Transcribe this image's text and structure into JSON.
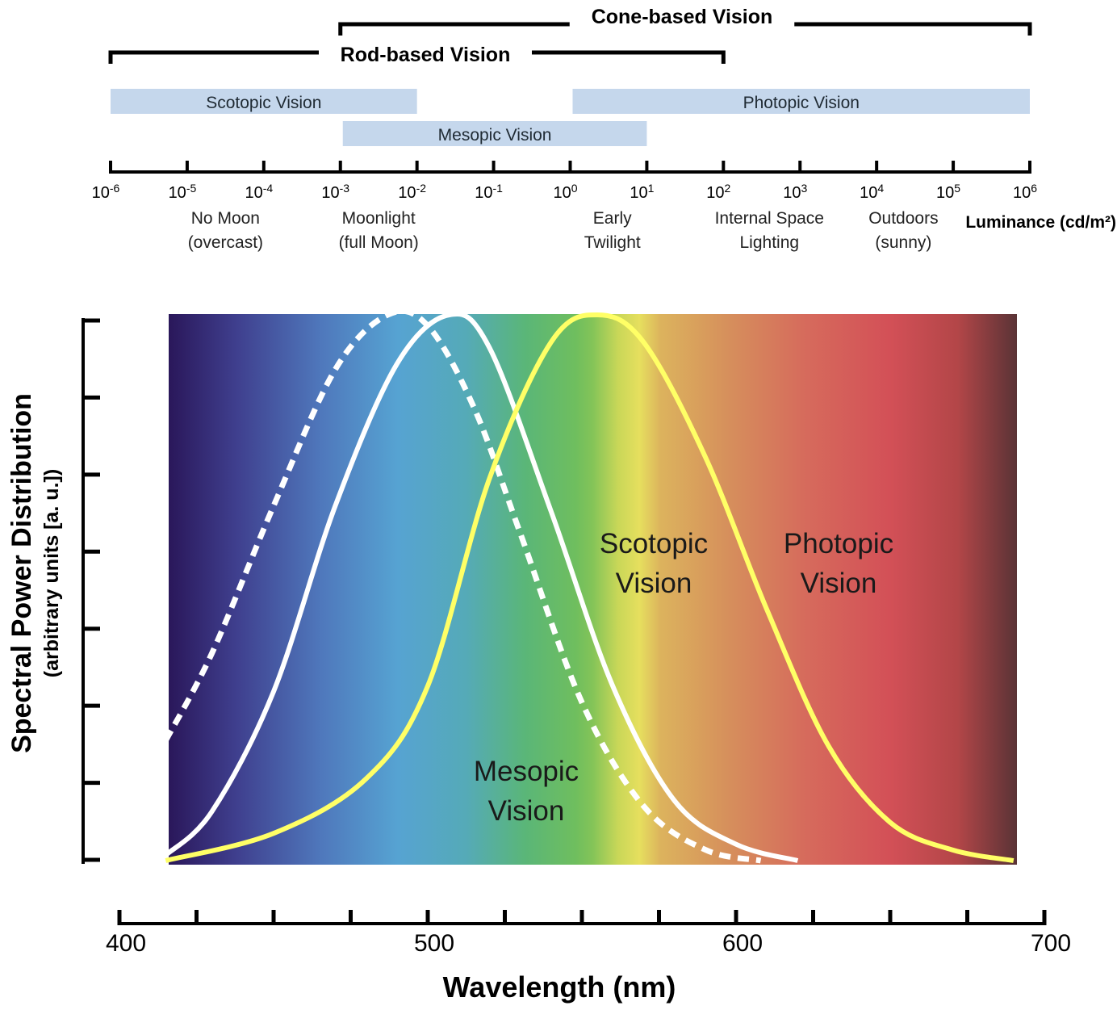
{
  "chart_data": [
    {
      "type": "range",
      "title": "",
      "brackets": [
        {
          "label": "Cone-based Vision",
          "from_exp": -3,
          "to_exp": 6
        },
        {
          "label": "Rod-based Vision",
          "from_exp": -6,
          "to_exp": 2
        }
      ],
      "bands": [
        {
          "label": "Scotopic Vision",
          "from_exp": -6,
          "to_exp": -2
        },
        {
          "label": "Mesopic Vision",
          "from_exp": -3,
          "to_exp": 1
        },
        {
          "label": "Photopic Vision",
          "from_exp": 0,
          "to_exp": 6
        }
      ],
      "axis": {
        "label": "Luminance (cd/m²)",
        "scale": "log10",
        "tick_base": "10",
        "tick_exponents": [
          "-6",
          "-5",
          "-4",
          "-3",
          "-2",
          "-1",
          "0",
          "1",
          "2",
          "3",
          "4",
          "5",
          "6"
        ]
      },
      "annotations": [
        {
          "line1": "No Moon",
          "line2": "(overcast)",
          "at_exp": -4.5
        },
        {
          "line1": "Moonlight",
          "line2": "(full Moon)",
          "at_exp": -2.5
        },
        {
          "line1": "Early",
          "line2": "Twilight",
          "at_exp": 0.55
        },
        {
          "line1": "Internal Space",
          "line2": "Lighting",
          "at_exp": 2.6
        },
        {
          "line1": "Outdoors",
          "line2": "(sunny)",
          "at_exp": 4.35
        }
      ],
      "colors": {
        "band": "#c5d7ec",
        "bracket": "#000000"
      }
    },
    {
      "type": "line",
      "xlabel": "Wavelength (nm)",
      "ylabel": "Spectral Power Distribution",
      "ylabel2": "(arbitrary units [a. u.])",
      "xlim": [
        400,
        700
      ],
      "ylim": [
        0,
        1
      ],
      "xticks": [
        400,
        500,
        600,
        700
      ],
      "grid": false,
      "background": "visible spectrum gradient",
      "series": [
        {
          "name": "Scotopic Vision",
          "style": "solid",
          "color": "#ffffff",
          "x": [
            415,
            430,
            450,
            470,
            490,
            507,
            520,
            540,
            560,
            580,
            600,
            620
          ],
          "y": [
            0.01,
            0.09,
            0.31,
            0.65,
            0.91,
            1.0,
            0.94,
            0.64,
            0.32,
            0.11,
            0.03,
            0.0
          ]
        },
        {
          "name": "Mesopic Vision",
          "style": "dashed",
          "color": "#ffffff",
          "x": [
            415,
            430,
            450,
            470,
            487,
            500,
            515,
            530,
            550,
            570,
            590,
            608
          ],
          "y": [
            0.22,
            0.38,
            0.65,
            0.9,
            1.0,
            0.98,
            0.83,
            0.6,
            0.29,
            0.1,
            0.02,
            0.0
          ]
        },
        {
          "name": "Photopic Vision",
          "style": "solid",
          "color": "#ffff66",
          "x": [
            415,
            450,
            480,
            500,
            520,
            540,
            555,
            570,
            590,
            610,
            630,
            650,
            670,
            690
          ],
          "y": [
            0.0,
            0.05,
            0.15,
            0.32,
            0.7,
            0.95,
            1.0,
            0.95,
            0.74,
            0.46,
            0.21,
            0.07,
            0.02,
            0.0
          ]
        }
      ],
      "labels": [
        {
          "series": "Scotopic Vision",
          "line1": "Scotopic",
          "line2": "Vision"
        },
        {
          "series": "Photopic Vision",
          "line1": "Photopic",
          "line2": "Vision"
        },
        {
          "series": "Mesopic Vision",
          "line1": "Mesopic",
          "line2": "Vision"
        }
      ]
    }
  ]
}
